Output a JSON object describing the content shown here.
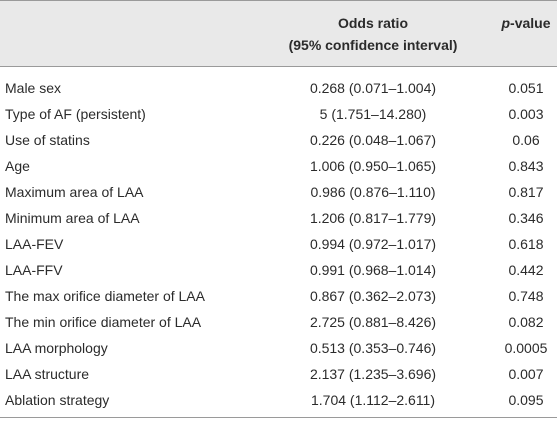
{
  "header": {
    "col1_line1": "Odds ratio",
    "col1_line2": "(95% confidence interval)",
    "col2": "p-value"
  },
  "table": {
    "rows": [
      [
        "Male sex",
        "0.268 (0.071–1.004)",
        "0.051"
      ],
      [
        "Type of AF (persistent)",
        "5 (1.751–14.280)",
        "0.003"
      ],
      [
        "Use of statins",
        "0.226 (0.048–1.067)",
        "0.06"
      ],
      [
        "Age",
        "1.006 (0.950–1.065)",
        "0.843"
      ],
      [
        "Maximum area of LAA",
        "0.986 (0.876–1.110)",
        "0.817"
      ],
      [
        "Minimum area of LAA",
        "1.206 (0.817–1.779)",
        "0.346"
      ],
      [
        "LAA-FEV",
        "0.994 (0.972–1.017)",
        "0.618"
      ],
      [
        "LAA-FFV",
        "0.991 (0.968–1.014)",
        "0.442"
      ],
      [
        "The max orifice diameter of LAA",
        "0.867 (0.362–2.073)",
        "0.748"
      ],
      [
        "The min orifice diameter of LAA",
        "2.725 (0.881–8.426)",
        "0.082"
      ],
      [
        "LAA morphology",
        "0.513 (0.353–0.746)",
        "0.0005"
      ],
      [
        "LAA structure",
        "2.137 (1.235–3.696)",
        "0.007"
      ],
      [
        "Ablation strategy",
        "1.704 (1.112–2.611)",
        "0.095"
      ]
    ]
  }
}
